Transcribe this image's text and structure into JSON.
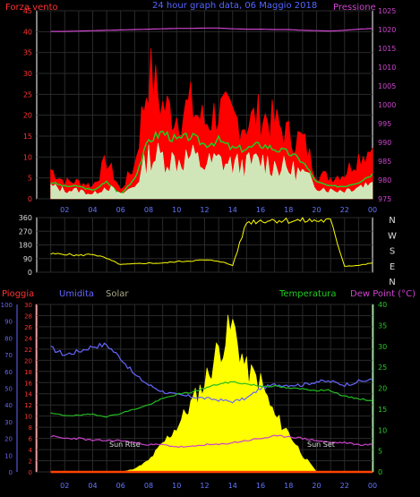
{
  "header": {
    "wind_title": "Forza vento",
    "date_title": "24 hour graph data, 06 Maggio 2018",
    "pressure_title": "Pressione"
  },
  "lower_header": {
    "rain_label": "Pioggia",
    "humidity_label": "Umidita",
    "solar_label": "Solar",
    "temperature_label": "Temperatura",
    "dewpoint_label": "Dew Point (°C)"
  },
  "annotations": {
    "sun_rise": "Sun Rise",
    "sun_set": "Sun Set"
  },
  "x_ticks": [
    "02",
    "04",
    "06",
    "08",
    "10",
    "12",
    "14",
    "16",
    "18",
    "20",
    "22",
    "00"
  ],
  "colors": {
    "wind_gust": "#ff0000",
    "wind_avg": "#22cc22",
    "wind_speed": "#ccffcc",
    "pressure": "#cc44cc",
    "direction": "#ffff00",
    "humidity": "#6666ff",
    "temperature": "#22bb22",
    "dewpoint": "#cc44cc",
    "solar": "#ffff00",
    "rain": "#ff4400",
    "grid": "#2a2a2a",
    "frame": "#ffffff"
  },
  "chart_data": [
    {
      "type": "line",
      "name": "wind-pressure",
      "title": "Forza vento",
      "left_axis": {
        "label": "Forza vento",
        "ylim": [
          0,
          45
        ],
        "ticks": [
          0,
          5,
          10,
          15,
          20,
          25,
          30,
          35,
          40,
          45
        ]
      },
      "right_axis": {
        "label": "Pressione",
        "ylim": [
          975,
          1025
        ],
        "ticks": [
          975,
          980,
          985,
          990,
          995,
          1000,
          1005,
          1010,
          1015,
          1020,
          1025
        ]
      },
      "x": [
        1,
        2,
        3,
        4,
        5,
        6,
        7,
        8,
        9,
        10,
        11,
        12,
        13,
        14,
        15,
        16,
        17,
        18,
        19,
        20,
        21,
        22,
        23,
        24
      ],
      "series": [
        {
          "key": "gust",
          "values": [
            7,
            4,
            4,
            3,
            9,
            2,
            8,
            30,
            22,
            20,
            22,
            18,
            21,
            19,
            18,
            20,
            18,
            15,
            14,
            6,
            5,
            6,
            10,
            12
          ]
        },
        {
          "key": "avg",
          "values": [
            4,
            3,
            3,
            2,
            4,
            1,
            5,
            14,
            16,
            14,
            15,
            13,
            14,
            12,
            12,
            13,
            12,
            11,
            9,
            4,
            3,
            3,
            4,
            6
          ]
        },
        {
          "key": "speed",
          "values": [
            3,
            2,
            2,
            1,
            3,
            1,
            3,
            10,
            10,
            9,
            10,
            8,
            9,
            8,
            8,
            9,
            8,
            7,
            6,
            3,
            2,
            2,
            3,
            4
          ]
        },
        {
          "key": "pressure",
          "axis": "right",
          "values": [
            1019.5,
            1019.5,
            1019.6,
            1019.7,
            1019.8,
            1019.9,
            1020,
            1020.1,
            1020.2,
            1020.3,
            1020.3,
            1020.4,
            1020.4,
            1020.2,
            1020.1,
            1020.1,
            1020,
            1020,
            1019.8,
            1019.7,
            1019.6,
            1019.8,
            1020.1,
            1020.3
          ]
        }
      ]
    },
    {
      "type": "line",
      "name": "wind-direction",
      "left_axis": {
        "ylim": [
          0,
          360
        ],
        "ticks": [
          0,
          90,
          180,
          270,
          360
        ]
      },
      "right_labels": [
        "N",
        "W",
        "S",
        "E",
        "N"
      ],
      "x": [
        1,
        2,
        3,
        4,
        5,
        6,
        7,
        8,
        9,
        10,
        11,
        12,
        13,
        14,
        15,
        16,
        17,
        18,
        19,
        20,
        21,
        22,
        23,
        24
      ],
      "series": [
        {
          "key": "direction",
          "values": [
            120,
            120,
            110,
            120,
            90,
            50,
            55,
            60,
            60,
            70,
            75,
            80,
            75,
            45,
            330,
            340,
            345,
            340,
            340,
            340,
            340,
            40,
            45,
            60
          ]
        }
      ]
    },
    {
      "type": "line",
      "name": "humidity-temperature-solar",
      "axes": [
        {
          "label": "Pioggia",
          "ylim": [
            0,
            30
          ],
          "ticks": [
            0,
            2,
            4,
            6,
            8,
            10,
            12,
            14,
            16,
            18,
            20,
            22,
            24,
            26,
            28,
            30
          ]
        },
        {
          "label": "Umidita",
          "ylim": [
            0,
            100
          ],
          "ticks": [
            0,
            10,
            20,
            30,
            40,
            50,
            60,
            70,
            80,
            90,
            100
          ]
        },
        {
          "label": "Temperatura",
          "ylim": [
            0,
            40
          ],
          "ticks": [
            0,
            5,
            10,
            15,
            20,
            25,
            30,
            35,
            40
          ]
        }
      ],
      "x": [
        1,
        2,
        3,
        4,
        5,
        6,
        7,
        8,
        9,
        10,
        11,
        12,
        13,
        14,
        15,
        16,
        17,
        18,
        19,
        20,
        21,
        22,
        23,
        24
      ],
      "series": [
        {
          "key": "humidity",
          "axis": 1,
          "values": [
            74,
            70,
            72,
            75,
            76,
            68,
            58,
            52,
            48,
            46,
            45,
            44,
            43,
            42,
            44,
            50,
            52,
            52,
            52,
            54,
            54,
            52,
            54,
            55
          ]
        },
        {
          "key": "temperature",
          "axis": 2,
          "values": [
            14,
            13.5,
            13.5,
            13.8,
            13.2,
            14,
            15,
            16,
            17.5,
            18.5,
            19,
            20,
            21,
            21.5,
            21,
            20.5,
            20.5,
            20,
            19.8,
            19.5,
            19.5,
            18,
            17.5,
            17
          ]
        },
        {
          "key": "dewpoint",
          "axis": 2,
          "values": [
            8.5,
            8,
            8,
            7.5,
            7.5,
            7.5,
            7,
            6.5,
            6.5,
            6,
            6,
            6.5,
            6.5,
            7,
            7.5,
            8,
            8.5,
            8.5,
            8,
            7.5,
            7,
            7,
            6.5,
            6.5
          ]
        },
        {
          "key": "solar",
          "axis": 0,
          "values": [
            0,
            0,
            0,
            0,
            0,
            0,
            0.5,
            2,
            5,
            8,
            12,
            16,
            22,
            26,
            18,
            16,
            10,
            7,
            3,
            0,
            0,
            0,
            0,
            0
          ]
        },
        {
          "key": "rain",
          "axis": 0,
          "values": [
            0,
            0,
            0,
            0,
            0,
            0,
            0,
            0,
            0,
            0,
            0,
            0,
            0,
            0,
            0,
            0,
            0,
            0,
            0,
            0,
            0,
            0,
            0,
            0
          ]
        }
      ]
    }
  ]
}
